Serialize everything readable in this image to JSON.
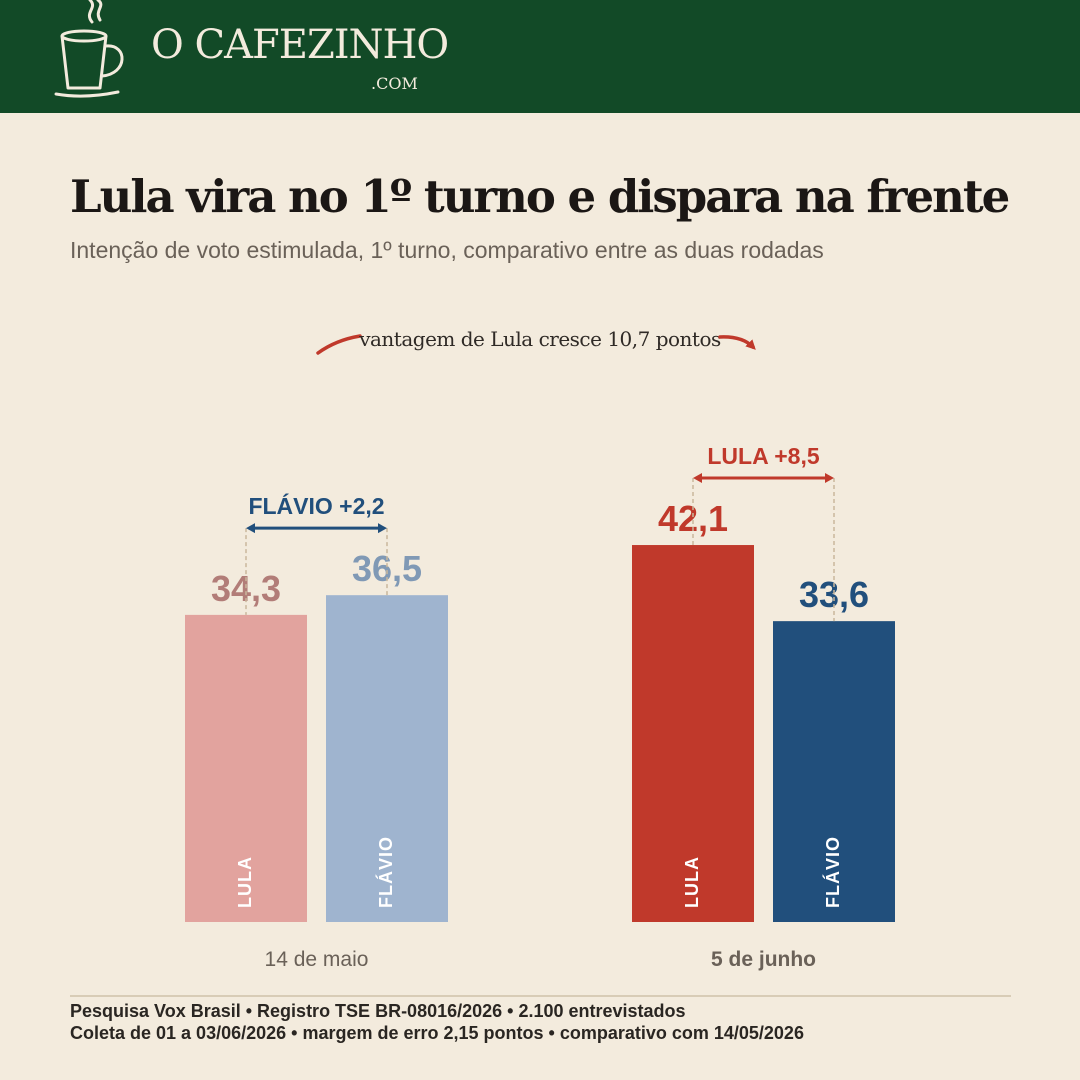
{
  "brand": {
    "name": "O CAFEZINHO",
    "domain": ".COM"
  },
  "title": "Lula vira no 1º turno e dispara na frente",
  "subtitle": "Intenção de voto estimulada, 1º turno, comparativo entre as duas rodadas",
  "annotation": "vantagem de Lula cresce 10,7 pontos",
  "colors": {
    "header_bg": "#124a27",
    "lula_may": "#e2a39e",
    "flavio_may": "#9fb4cf",
    "lula_june": "#c0392b",
    "flavio_june": "#214f7c",
    "lula_may_label": "#b27d78",
    "flavio_may_label": "#8099b5"
  },
  "chart_data": {
    "type": "bar",
    "categories": [
      "14 de maio",
      "5 de junho"
    ],
    "series": [
      {
        "name": "LULA",
        "values": [
          34.3,
          42.1
        ],
        "value_labels": [
          "34,3",
          "42,1"
        ]
      },
      {
        "name": "FLÁVIO",
        "values": [
          36.5,
          33.6
        ],
        "value_labels": [
          "36,5",
          "33,6"
        ]
      }
    ],
    "leads": [
      {
        "label": "FLÁVIO +2,2",
        "leader": "FLÁVIO"
      },
      {
        "label": "LULA +8,5",
        "leader": "LULA"
      }
    ],
    "ylim": [
      0,
      47.8
    ],
    "grid": false,
    "xlabel": "",
    "ylabel": ""
  },
  "footer": {
    "line1": "Pesquisa Vox Brasil  •  Registro TSE BR-08016/2026  •  2.100 entrevistados",
    "line2": "Coleta de 01 a 03/06/2026  •  margem de erro 2,15 pontos  •  comparativo com 14/05/2026"
  }
}
